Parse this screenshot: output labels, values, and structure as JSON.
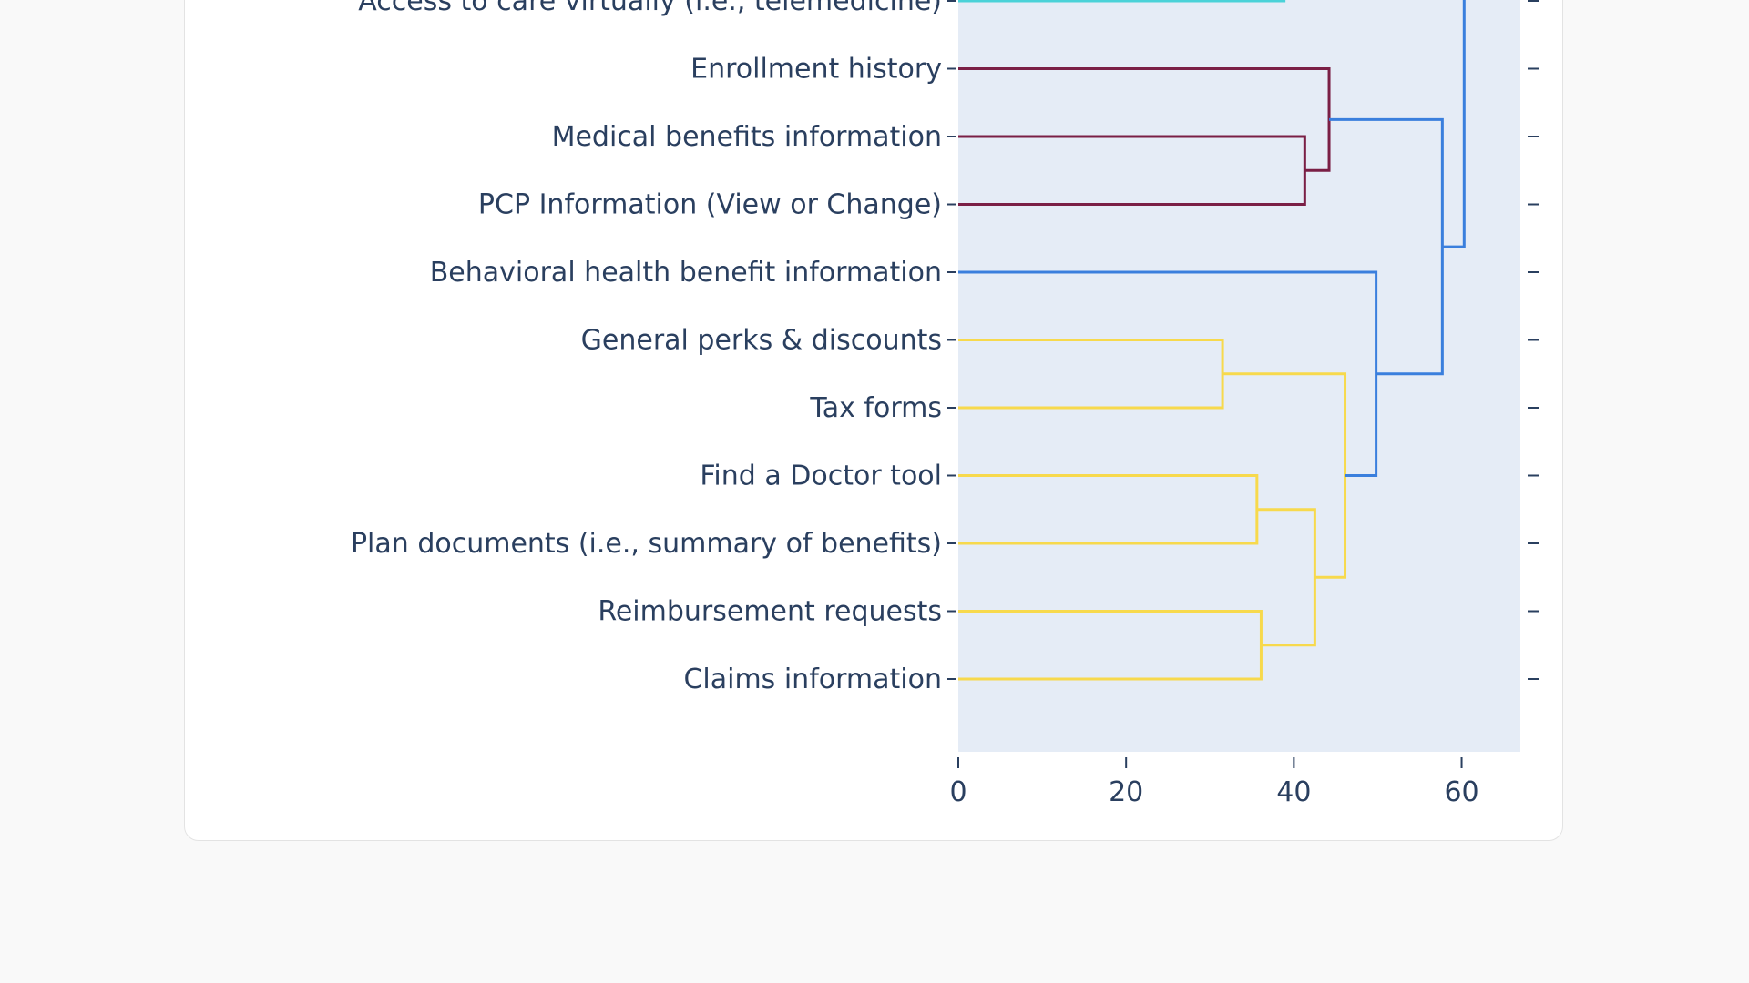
{
  "chart_data": {
    "type": "dendrogram",
    "orientation": "horizontal",
    "title": "",
    "xlabel": "",
    "ylabel": "",
    "xlim": [
      0,
      67
    ],
    "x_ticks": [
      0,
      20,
      40,
      60
    ],
    "grid": false,
    "leaves": [
      "Access to care virtually (i.e., telemedicine)",
      "Enrollment history",
      "Medical benefits information",
      "PCP Information (View or Change)",
      "Behavioral health benefit information",
      "General perks & discounts",
      "Tax forms",
      "Find a Doctor tool",
      "Plan documents (i.e., summary of benefits)",
      "Reimbursement requests",
      "Claims information"
    ],
    "leaf_colors": [
      "#4ad2d8",
      "#7a1f45",
      "#7a1f45",
      "#7a1f45",
      "#3a7fdd",
      "#f7d94c",
      "#f7d94c",
      "#f7d94c",
      "#f7d94c",
      "#f7d94c",
      "#f7d94c"
    ],
    "links": [
      {
        "color": "#7a1f45",
        "left": "Medical benefits information",
        "right": "PCP Information (View or Change)",
        "height": 41.3
      },
      {
        "color": "#7a1f45",
        "left": "Enrollment history",
        "right": "cluster(Medical benefits information, PCP Information)",
        "height": 44.2
      },
      {
        "color": "#f7d94c",
        "left": "General perks & discounts",
        "right": "Tax forms",
        "height": 31.5
      },
      {
        "color": "#f7d94c",
        "left": "Find a Doctor tool",
        "right": "Plan documents (i.e., summary of benefits)",
        "height": 35.6
      },
      {
        "color": "#f7d94c",
        "left": "Reimbursement requests",
        "right": "Claims information",
        "height": 36.1
      },
      {
        "color": "#f7d94c",
        "left": "cluster(Find a Doctor tool, Plan documents)",
        "right": "cluster(Reimbursement requests, Claims information)",
        "height": 42.5
      },
      {
        "color": "#f7d94c",
        "left": "cluster(General perks & discounts, Tax forms)",
        "right": "cluster(Find a Doctor tool … Claims information)",
        "height": 46.1
      },
      {
        "color": "#3a7fdd",
        "left": "Behavioral health benefit information",
        "right": "cluster(General perks & discounts … Claims information)",
        "height": 49.8
      },
      {
        "color": "#3a7fdd",
        "left": "cluster(Enrollment history, Medical benefits information, PCP Information)",
        "right": "cluster(Behavioral health benefit information … Claims information)",
        "height": 57.7
      },
      {
        "color": "#3a7fdd",
        "left": "cluster(above Access to care virtually)",
        "right": "cluster(Enrollment history … Claims information)",
        "height": 60.3
      }
    ],
    "partial_leaf_segment_end": 39
  }
}
